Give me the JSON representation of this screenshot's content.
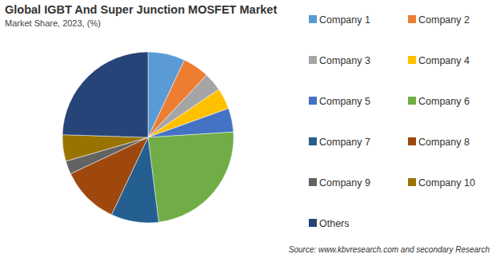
{
  "chart_data": {
    "type": "pie",
    "title": "Global IGBT And Super Junction MOSFET Market",
    "subtitle": "Market Share, 2023, (%)",
    "source": "Source: www.kbvresearch.com and secondary Research",
    "categories": [
      "Company 1",
      "Company 2",
      "Company 3",
      "Company 4",
      "Company 5",
      "Company 6",
      "Company 7",
      "Company 8",
      "Company 9",
      "Company 10",
      "Others"
    ],
    "values": [
      7,
      5,
      3.5,
      4,
      4.5,
      24,
      9,
      11,
      2.5,
      5,
      24.5
    ],
    "colors": [
      "#5b9bd5",
      "#ed7d31",
      "#a5a5a5",
      "#ffc000",
      "#4472c4",
      "#70ad47",
      "#255e91",
      "#9e480e",
      "#636363",
      "#997300",
      "#264478"
    ],
    "legend": "right"
  }
}
